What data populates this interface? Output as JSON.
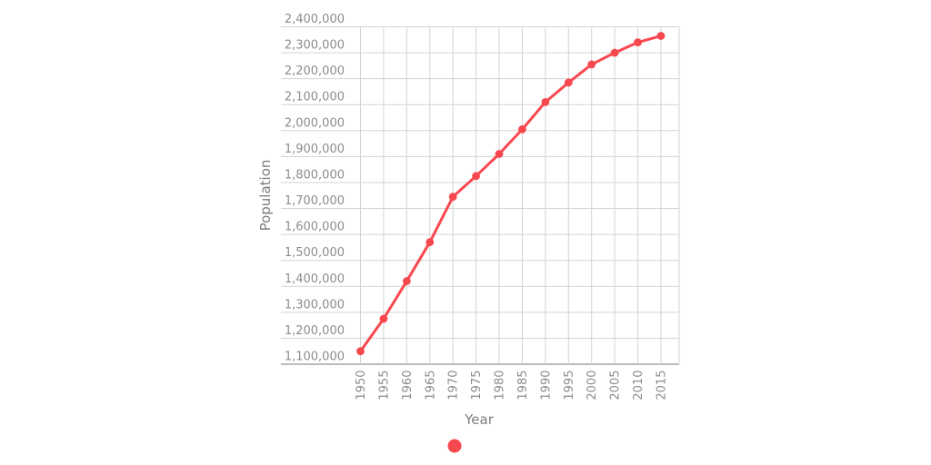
{
  "chart_data": {
    "type": "line",
    "xlabel": "Year",
    "ylabel": "Population",
    "categories": [
      "1950",
      "1955",
      "1960",
      "1965",
      "1970",
      "1975",
      "1980",
      "1985",
      "1990",
      "1995",
      "2000",
      "2005",
      "2010",
      "2015"
    ],
    "series": [
      {
        "name": "",
        "values": [
          1150000,
          1275000,
          1420000,
          1570000,
          1745000,
          1825000,
          1910000,
          2005000,
          2110000,
          2185000,
          2255000,
          2300000,
          2340000,
          2365000
        ]
      }
    ],
    "y_tick_labels": [
      "1,100,000",
      "1,200,000",
      "1,300,000",
      "1,400,000",
      "1,500,000",
      "1,600,000",
      "1,700,000",
      "1,800,000",
      "1,900,000",
      "2,000,000",
      "2,100,000",
      "2,200,000",
      "2,300,000",
      "2,400,000"
    ],
    "y_tick_values": [
      1100000,
      1200000,
      1300000,
      1400000,
      1500000,
      1600000,
      1700000,
      1800000,
      1900000,
      2000000,
      2100000,
      2200000,
      2300000,
      2400000
    ],
    "ylim": [
      1100000,
      2400000
    ],
    "grid": true,
    "legend": {
      "position": "bottom",
      "marker": "circle",
      "label": ""
    }
  },
  "colors": {
    "series": "#F8484F",
    "gridline": "#D3D3D3",
    "axis_line": "#A6A6A6",
    "tick_text": "#8C8C8C",
    "background": "#FFFFFF"
  }
}
